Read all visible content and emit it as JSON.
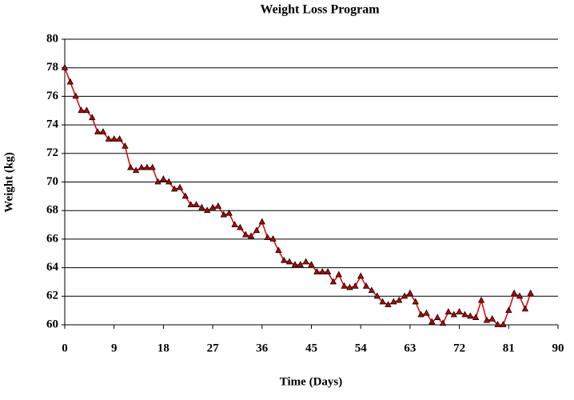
{
  "chart_data": {
    "type": "line",
    "title": "Weight Loss Program",
    "x_label": "Time (Days)",
    "y_label": "Weight (kg)",
    "x": [
      0,
      1,
      2,
      3,
      4,
      5,
      6,
      7,
      8,
      9,
      10,
      11,
      12,
      13,
      14,
      15,
      16,
      17,
      18,
      19,
      20,
      21,
      22,
      23,
      24,
      25,
      26,
      27,
      28,
      29,
      30,
      31,
      32,
      33,
      34,
      35,
      36,
      37,
      38,
      39,
      40,
      41,
      42,
      43,
      44,
      45,
      46,
      47,
      48,
      49,
      50,
      51,
      52,
      53,
      54,
      55,
      56,
      57,
      58,
      59,
      60,
      61,
      62,
      63,
      64,
      65,
      66,
      67,
      68,
      69,
      70,
      71,
      72,
      73,
      74,
      75,
      76,
      77,
      78,
      79,
      80,
      81,
      82,
      83,
      84,
      85
    ],
    "series": [
      {
        "name": "Weight",
        "color": "#e00000",
        "marker_color": "#c00000",
        "values": [
          78,
          77,
          76,
          75,
          75,
          74.5,
          73.5,
          73.5,
          73,
          73,
          73,
          72.5,
          71,
          70.8,
          71,
          71,
          71,
          70,
          70.2,
          70,
          69.5,
          69.6,
          69,
          68.4,
          68.4,
          68.2,
          68,
          68.2,
          68.3,
          67.7,
          67.8,
          67,
          66.8,
          66.3,
          66.2,
          66.6,
          67.2,
          66.1,
          66,
          65.2,
          64.5,
          64.4,
          64.2,
          64.2,
          64.4,
          64.2,
          63.7,
          63.7,
          63.7,
          63,
          63.5,
          62.7,
          62.6,
          62.7,
          63.4,
          62.7,
          62.4,
          62,
          61.6,
          61.4,
          61.6,
          61.7,
          62,
          62.2,
          61.6,
          60.7,
          60.8,
          60.2,
          60.5,
          60.1,
          60.9,
          60.7,
          60.9,
          60.7,
          60.6,
          60.5,
          61.7,
          60.3,
          60.4,
          60,
          60,
          61,
          62.2,
          62,
          61.1,
          62.2
        ]
      }
    ],
    "xlim": [
      0,
      90
    ],
    "xticks": [
      0,
      9,
      18,
      27,
      36,
      45,
      54,
      63,
      72,
      81,
      90
    ],
    "ylim": [
      60,
      80
    ],
    "yticks": [
      60,
      62,
      64,
      66,
      68,
      70,
      72,
      74,
      76,
      78,
      80
    ],
    "grid": true
  }
}
